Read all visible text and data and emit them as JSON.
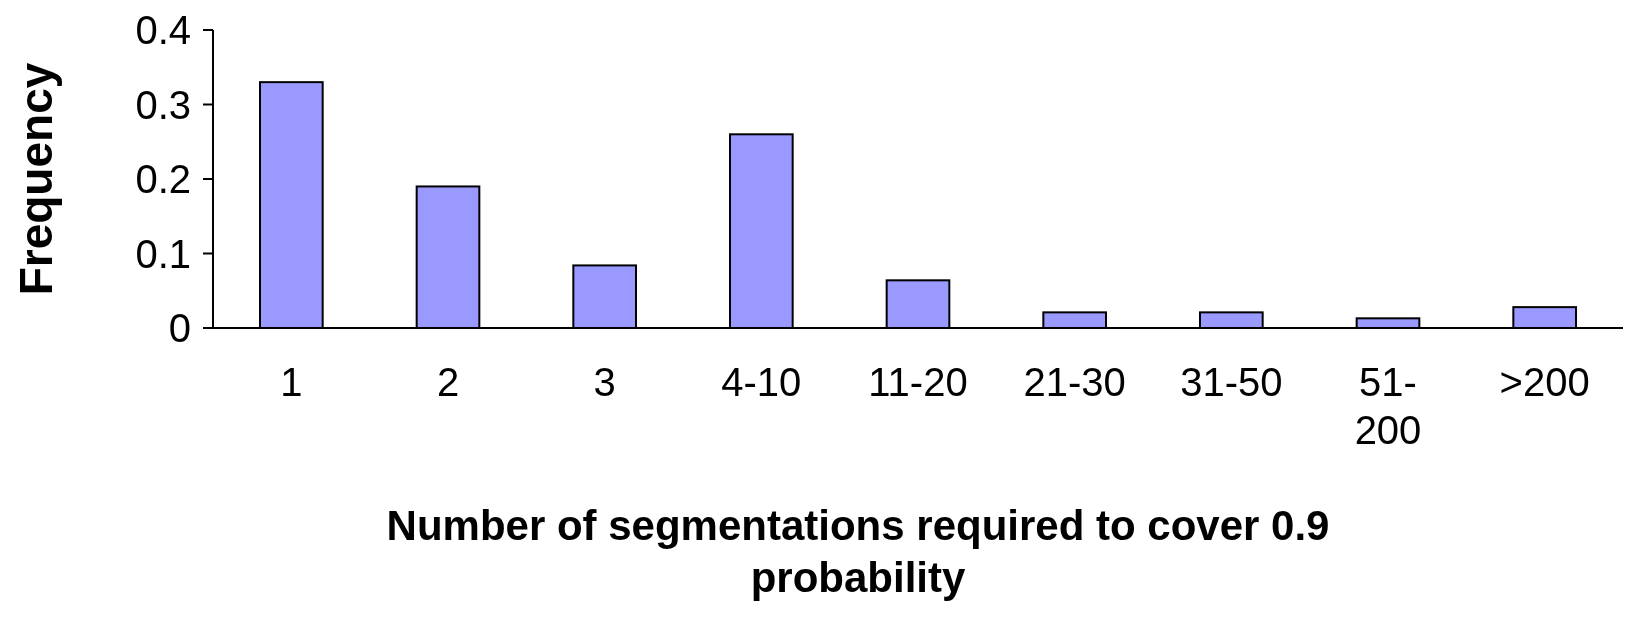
{
  "chart_data": {
    "type": "bar",
    "xlabel": "Number of segmentations required to cover 0.9 probability",
    "ylabel": "Frequency",
    "categories": [
      "1",
      "2",
      "3",
      "4-10",
      "11-20",
      "21-30",
      "31-50",
      "51-200",
      ">200"
    ],
    "values": [
      0.33,
      0.19,
      0.084,
      0.26,
      0.064,
      0.021,
      0.021,
      0.013,
      0.028
    ],
    "color": "#9999ff",
    "ylim": [
      0,
      0.4
    ],
    "yticks": [
      0,
      0.1,
      0.2,
      0.3,
      0.4
    ],
    "grid": false
  }
}
